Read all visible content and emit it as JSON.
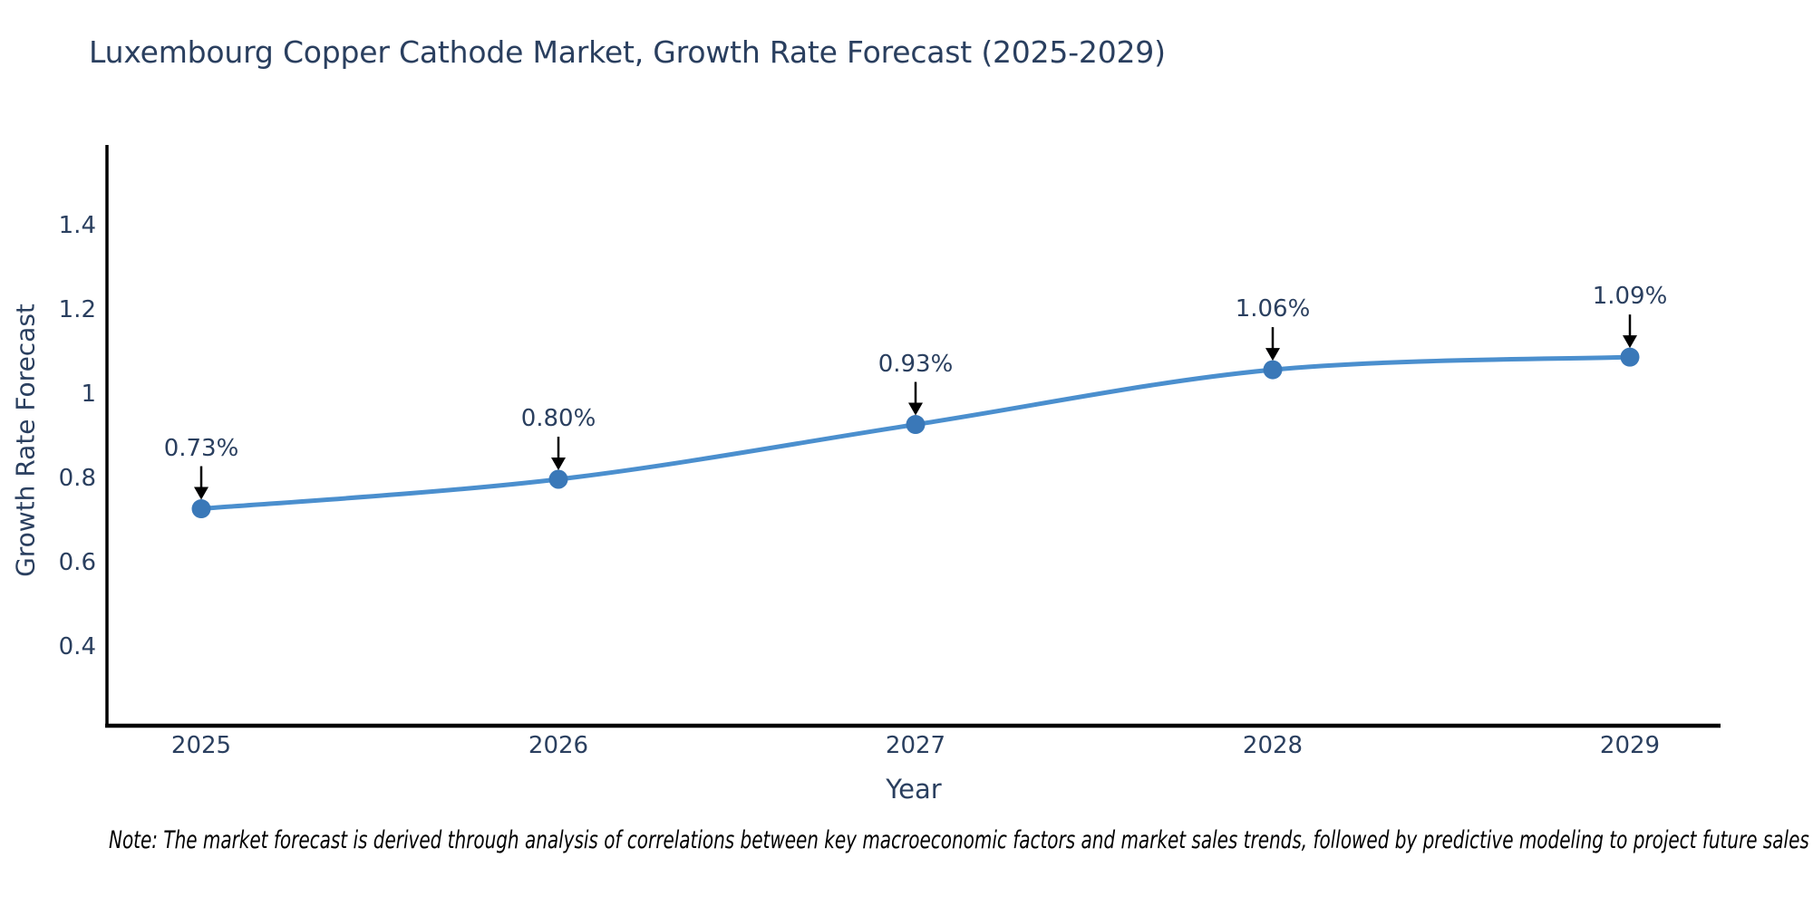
{
  "title": "Luxembourg Copper Cathode Market, Growth Rate Forecast (2025-2029)",
  "note": "Note: The market forecast is derived through analysis of correlations between key macroeconomic factors and market sales trends, followed by predictive modeling to project future sales",
  "chart_data": {
    "type": "line",
    "title": "Luxembourg Copper Cathode Market, Growth Rate Forecast (2025-2029)",
    "xlabel": "Year",
    "ylabel": "Growth Rate Forecast",
    "x": [
      2025,
      2026,
      2027,
      2028,
      2029
    ],
    "categories": [
      "2025",
      "2026",
      "2027",
      "2028",
      "2029"
    ],
    "series": [
      {
        "name": "Growth Rate Forecast",
        "values": [
          0.73,
          0.8,
          0.93,
          1.06,
          1.09
        ]
      }
    ],
    "point_labels": [
      "0.73%",
      "0.80%",
      "0.93%",
      "1.06%",
      "1.09%"
    ],
    "y_ticks": {
      "values": [
        1.4,
        1.2,
        1.0,
        0.8,
        0.6,
        0.4
      ],
      "labels": [
        "1.4",
        "1.2",
        "1",
        "0.8",
        "0.6",
        "0.4"
      ]
    },
    "ylim": [
      0.2,
      1.59
    ],
    "xlim": [
      2024.74,
      2029.26
    ],
    "grid": false,
    "legend_position": "none",
    "line_shape": "spline",
    "annotation_style": "black-down-arrows",
    "colors": {
      "line": "#4b8fce",
      "marker": "#3a78b8",
      "axis": "#000000",
      "text": "#2a3f5f",
      "arrow": "#000000",
      "note_text": "#000000",
      "background": "#ffffff"
    }
  }
}
